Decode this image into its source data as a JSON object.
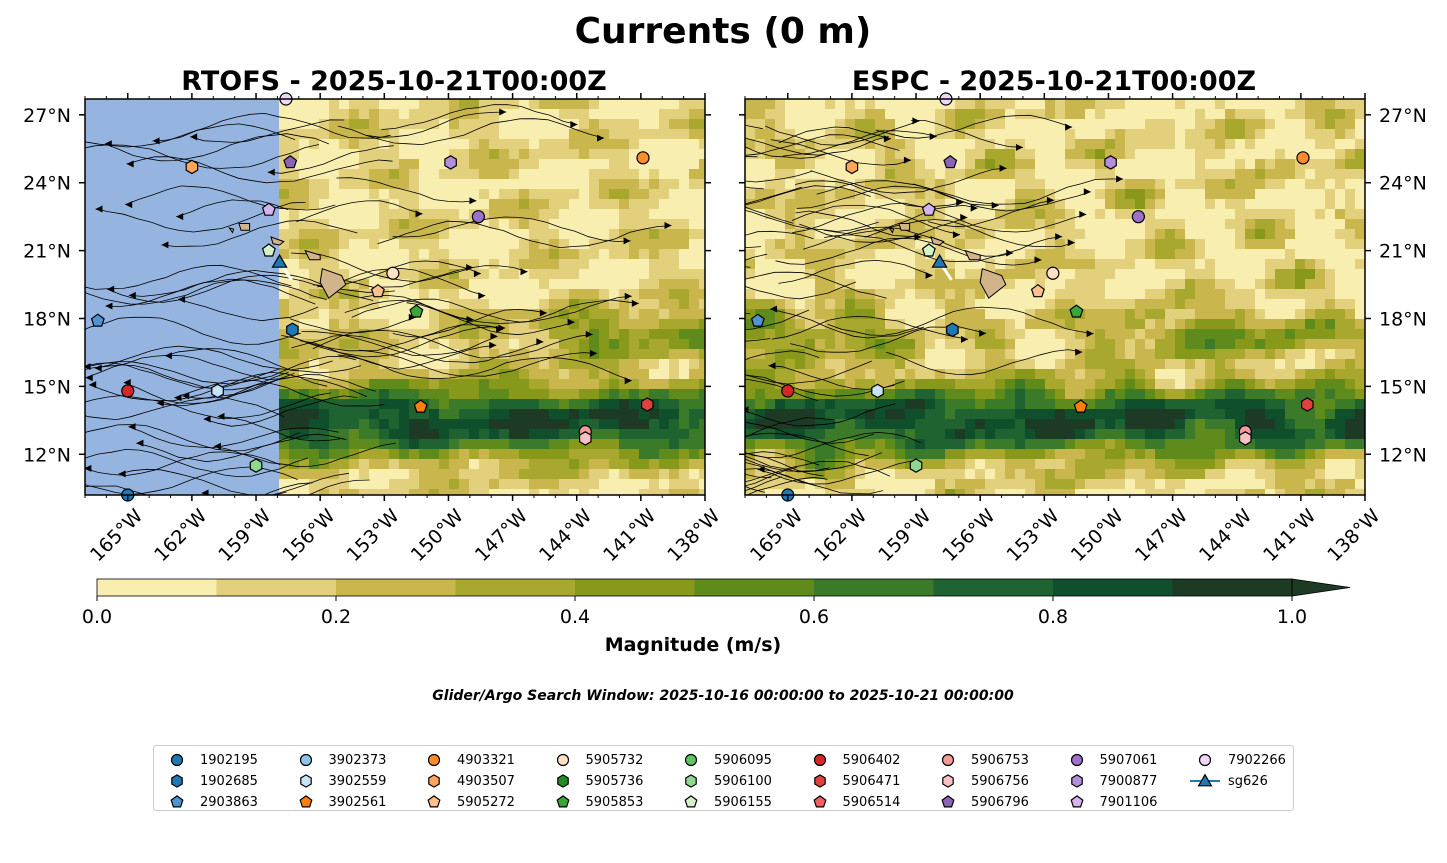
{
  "figure": {
    "title": "Currents (0 m)",
    "search_window": "Glider/Argo Search Window: 2025-10-16 00:00:00 to 2025-10-21 00:00:00"
  },
  "colorbar": {
    "label": "Magnitude (m/s)",
    "ticks": [
      "0.0",
      "0.2",
      "0.4",
      "0.6",
      "0.8",
      "1.0"
    ],
    "levels": [
      0,
      0.1,
      0.2,
      0.3,
      0.4,
      0.5,
      0.6,
      0.7,
      0.8,
      0.9,
      1.0
    ],
    "colors": [
      "#f7eeb0",
      "#e2d07c",
      "#c9b64d",
      "#a8a82e",
      "#87981b",
      "#5f8a1c",
      "#3a7a28",
      "#1f6430",
      "#0f4f2c",
      "#1d3a25"
    ],
    "extend": "max"
  },
  "colors": {
    "land": "#d2b48c",
    "masked_ocean": "#95b5e0",
    "glider_track": "#ffffff"
  },
  "chart_data": [
    {
      "type": "map",
      "title": "RTOFS - 2025-10-21T00:00Z",
      "lon_range": [
        -167,
        -138
      ],
      "lat_range": [
        10.2,
        27.7
      ],
      "lon_ticks": [
        -165,
        -162,
        -159,
        -156,
        -153,
        -150,
        -147,
        -144,
        -141,
        -138
      ],
      "lon_tick_labels": [
        "165°W",
        "162°W",
        "159°W",
        "156°W",
        "153°W",
        "150°W",
        "147°W",
        "144°W",
        "141°W",
        "138°W"
      ],
      "lat_ticks": [
        12,
        15,
        18,
        21,
        24,
        27
      ],
      "lat_tick_labels": [
        "12°N",
        "15°N",
        "18°N",
        "21°N",
        "24°N",
        "27°N"
      ],
      "lat_labels_side": "left",
      "model_domain_west_lon": -157.9,
      "field": "surface current magnitude with streamlines",
      "markers": [
        {
          "id": "1902195",
          "lon": -165.0,
          "lat": 10.2
        },
        {
          "id": "5906402",
          "lon": -165.0,
          "lat": 14.8
        },
        {
          "id": "3902559",
          "lon": -160.8,
          "lat": 14.8
        },
        {
          "id": "5906100",
          "lon": -159.0,
          "lat": 11.5
        },
        {
          "id": "2903863",
          "lon": -166.4,
          "lat": 17.9
        },
        {
          "id": "4903507",
          "lon": -162.0,
          "lat": 24.7
        },
        {
          "id": "7901106",
          "lon": -158.4,
          "lat": 22.8
        },
        {
          "id": "5906155",
          "lon": -158.4,
          "lat": 21.0
        },
        {
          "id": "5906796",
          "lon": -157.4,
          "lat": 24.9
        },
        {
          "id": "7902266",
          "lon": -157.6,
          "lat": 27.7
        },
        {
          "id": "1902685",
          "lon": -157.3,
          "lat": 17.5
        },
        {
          "id": "5905732",
          "lon": -152.6,
          "lat": 20.0
        },
        {
          "id": "5905272",
          "lon": -153.3,
          "lat": 19.2
        },
        {
          "id": "5905853",
          "lon": -151.5,
          "lat": 18.3
        },
        {
          "id": "7900877",
          "lon": -149.9,
          "lat": 24.9
        },
        {
          "id": "5907061",
          "lon": -148.6,
          "lat": 22.5
        },
        {
          "id": "3902561",
          "lon": -151.3,
          "lat": 14.1
        },
        {
          "id": "5906753",
          "lon": -143.6,
          "lat": 13.0
        },
        {
          "id": "5906756",
          "lon": -143.6,
          "lat": 12.7
        },
        {
          "id": "4903321",
          "lon": -140.9,
          "lat": 25.1
        },
        {
          "id": "5906471",
          "lon": -140.7,
          "lat": 14.2
        },
        {
          "id": "sg626",
          "lon": -157.9,
          "lat": 20.5
        }
      ]
    },
    {
      "type": "map",
      "title": "ESPC - 2025-10-21T00:00Z",
      "lon_range": [
        -167,
        -138
      ],
      "lat_range": [
        10.2,
        27.7
      ],
      "lon_ticks": [
        -165,
        -162,
        -159,
        -156,
        -153,
        -150,
        -147,
        -144,
        -141,
        -138
      ],
      "lon_tick_labels": [
        "165°W",
        "162°W",
        "159°W",
        "156°W",
        "153°W",
        "150°W",
        "147°W",
        "144°W",
        "141°W",
        "138°W"
      ],
      "lat_ticks": [
        12,
        15,
        18,
        21,
        24,
        27
      ],
      "lat_tick_labels": [
        "12°N",
        "15°N",
        "18°N",
        "21°N",
        "24°N",
        "27°N"
      ],
      "lat_labels_side": "right",
      "field": "surface current magnitude with streamlines",
      "markers": [
        {
          "id": "1902195",
          "lon": -165.0,
          "lat": 10.2
        },
        {
          "id": "5906402",
          "lon": -165.0,
          "lat": 14.8
        },
        {
          "id": "3902559",
          "lon": -160.8,
          "lat": 14.8
        },
        {
          "id": "5906100",
          "lon": -159.0,
          "lat": 11.5
        },
        {
          "id": "2903863",
          "lon": -166.4,
          "lat": 17.9
        },
        {
          "id": "4903507",
          "lon": -162.0,
          "lat": 24.7
        },
        {
          "id": "7901106",
          "lon": -158.4,
          "lat": 22.8
        },
        {
          "id": "5906155",
          "lon": -158.4,
          "lat": 21.0
        },
        {
          "id": "5906796",
          "lon": -157.4,
          "lat": 24.9
        },
        {
          "id": "7902266",
          "lon": -157.6,
          "lat": 27.7
        },
        {
          "id": "1902685",
          "lon": -157.3,
          "lat": 17.5
        },
        {
          "id": "5905732",
          "lon": -152.6,
          "lat": 20.0
        },
        {
          "id": "5905272",
          "lon": -153.3,
          "lat": 19.2
        },
        {
          "id": "5905853",
          "lon": -151.5,
          "lat": 18.3
        },
        {
          "id": "7900877",
          "lon": -149.9,
          "lat": 24.9
        },
        {
          "id": "5907061",
          "lon": -148.6,
          "lat": 22.5
        },
        {
          "id": "3902561",
          "lon": -151.3,
          "lat": 14.1
        },
        {
          "id": "5906753",
          "lon": -143.6,
          "lat": 13.0
        },
        {
          "id": "5906756",
          "lon": -143.6,
          "lat": 12.7
        },
        {
          "id": "4903321",
          "lon": -140.9,
          "lat": 25.1
        },
        {
          "id": "5906471",
          "lon": -140.7,
          "lat": 14.2
        },
        {
          "id": "sg626",
          "lon": -157.9,
          "lat": 20.5
        }
      ]
    }
  ],
  "legend": {
    "items": [
      {
        "label": "1902195",
        "marker": "circle",
        "color": "#1f77b4"
      },
      {
        "label": "1902685",
        "marker": "hexagon",
        "color": "#1f77b4"
      },
      {
        "label": "2903863",
        "marker": "pentagon",
        "color": "#4f94cd"
      },
      {
        "label": "3902373",
        "marker": "circle",
        "color": "#8fc3ea"
      },
      {
        "label": "3902559",
        "marker": "hexagon",
        "color": "#c7e4f7"
      },
      {
        "label": "3902561",
        "marker": "pentagon",
        "color": "#ff7f0e"
      },
      {
        "label": "4903321",
        "marker": "circle",
        "color": "#ff8c2a"
      },
      {
        "label": "4903507",
        "marker": "hexagon",
        "color": "#ffa65c"
      },
      {
        "label": "5905272",
        "marker": "pentagon",
        "color": "#ffc08e"
      },
      {
        "label": "5905732",
        "marker": "circle",
        "color": "#ffe0c2"
      },
      {
        "label": "5905736",
        "marker": "hexagon",
        "color": "#238b23"
      },
      {
        "label": "5905853",
        "marker": "pentagon",
        "color": "#3aa53a"
      },
      {
        "label": "5906095",
        "marker": "circle",
        "color": "#5fc45f"
      },
      {
        "label": "5906100",
        "marker": "hexagon",
        "color": "#8fd88f"
      },
      {
        "label": "5906155",
        "marker": "pentagon",
        "color": "#d3f4c9"
      },
      {
        "label": "5906402",
        "marker": "circle",
        "color": "#d62728"
      },
      {
        "label": "5906471",
        "marker": "hexagon",
        "color": "#e0403e"
      },
      {
        "label": "5906514",
        "marker": "pentagon",
        "color": "#f06060"
      },
      {
        "label": "5906753",
        "marker": "circle",
        "color": "#f49a9a"
      },
      {
        "label": "5906756",
        "marker": "hexagon",
        "color": "#f8c0c0"
      },
      {
        "label": "5906796",
        "marker": "pentagon",
        "color": "#8c64b4"
      },
      {
        "label": "5907061",
        "marker": "circle",
        "color": "#9b72c8"
      },
      {
        "label": "7900877",
        "marker": "hexagon",
        "color": "#b38fd9"
      },
      {
        "label": "7901106",
        "marker": "pentagon",
        "color": "#d5b3ee"
      },
      {
        "label": "7902266",
        "marker": "circle",
        "color": "#efd6f9"
      },
      {
        "label": "sg626",
        "marker": "triangle",
        "color": "#1f77b4"
      }
    ]
  }
}
